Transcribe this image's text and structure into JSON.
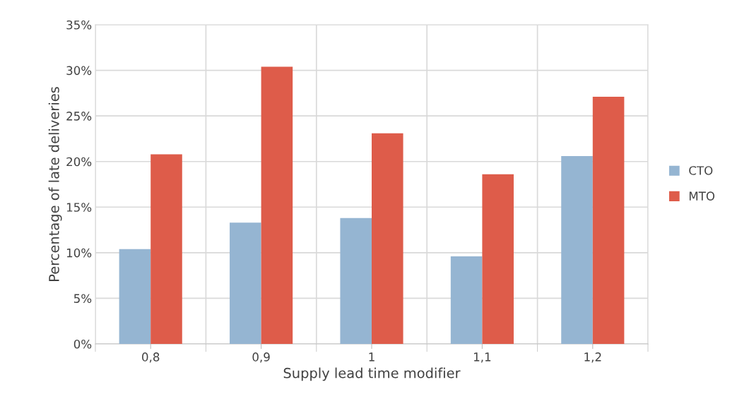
{
  "chart_data": {
    "type": "bar",
    "xlabel": "Supply lead time modifier",
    "ylabel": "Percentage of late deliveries",
    "categories": [
      "0,8",
      "0,9",
      "1",
      "1,1",
      "1,2"
    ],
    "series": [
      {
        "name": "CTO",
        "color": "#95b5d2",
        "values": [
          10.4,
          13.3,
          13.8,
          9.6,
          20.6
        ]
      },
      {
        "name": "MTO",
        "color": "#de5c4a",
        "values": [
          20.8,
          30.4,
          23.1,
          18.6,
          27.1
        ]
      }
    ],
    "ylim": [
      0,
      35
    ],
    "yticks": [
      {
        "value": 0,
        "label": "0%"
      },
      {
        "value": 5,
        "label": "5%"
      },
      {
        "value": 10,
        "label": "10%"
      },
      {
        "value": 15,
        "label": "15%"
      },
      {
        "value": 20,
        "label": "20%"
      },
      {
        "value": 25,
        "label": "25%"
      },
      {
        "value": 30,
        "label": "30%"
      },
      {
        "value": 35,
        "label": "35%"
      }
    ],
    "grid": true,
    "legend": "right"
  }
}
